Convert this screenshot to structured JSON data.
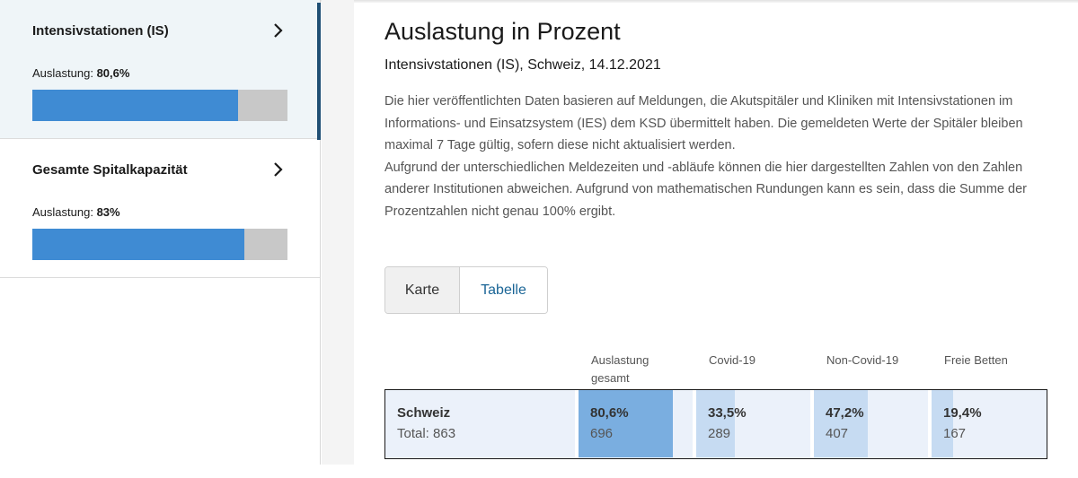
{
  "sidebar": {
    "items": [
      {
        "title": "Intensivstationen (IS)",
        "usage_label": "Auslastung:",
        "usage_value": "80,6%",
        "fill_fraction": 0.806,
        "active": true
      },
      {
        "title": "Gesamte Spitalkapazität",
        "usage_label": "Auslastung:",
        "usage_value": "83%",
        "fill_fraction": 0.83,
        "active": false
      }
    ]
  },
  "main": {
    "title": "Auslastung in Prozent",
    "subtitle": "Intensivstationen (IS), Schweiz, 14.12.2021",
    "paragraph": "Die hier veröffentlichten Daten basieren auf Meldungen, die Akutspitäler und Kliniken mit Intensivstationen im Informations- und Einsatzsystem (IES) dem KSD übermittelt haben. Die gemeldeten Werte der Spitäler bleiben maximal 7 Tage gültig, sofern diese nicht aktualisiert werden.",
    "paragraph2": "Aufgrund der unterschiedlichen Meldezeiten und -abläufe können die hier dargestellten Zahlen von den Zahlen anderer Institutionen abweichen. Aufgrund von mathematischen Rundungen kann es sein, dass die Summe der Prozentzahlen nicht genau 100% ergibt.",
    "toggle": {
      "karte": "Karte",
      "tabelle": "Tabelle",
      "selected": "Tabelle"
    }
  },
  "table": {
    "headers": [
      "Auslastung gesamt",
      "Covid-19",
      "Non-Covid-19",
      "Freie Betten"
    ],
    "header0_line1": "Auslastung",
    "header0_line2": "gesamt",
    "row": {
      "name": "Schweiz",
      "total": "Total: 863",
      "cells": [
        {
          "pct": "80,6%",
          "count": "696",
          "fraction": 1.0,
          "color": "#7aaee0"
        },
        {
          "pct": "33,5%",
          "count": "289",
          "fraction": 0.335,
          "color": "#c6dbf2"
        },
        {
          "pct": "47,2%",
          "count": "407",
          "fraction": 0.472,
          "color": "#c6dbf2"
        },
        {
          "pct": "19,4%",
          "count": "167",
          "fraction": 0.194,
          "color": "#c6dbf2"
        }
      ]
    }
  },
  "icons": {
    "chevron": "chevron-right-icon"
  },
  "colors": {
    "accent": "#3f8bd3",
    "active_border": "#1f4f74",
    "link": "#1a6596"
  }
}
